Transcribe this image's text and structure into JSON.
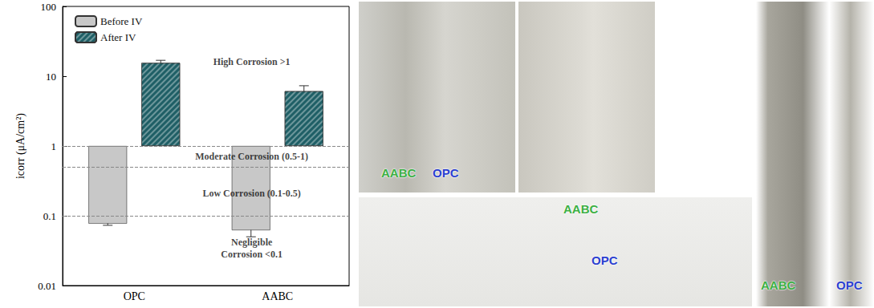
{
  "chart_data": {
    "type": "bar",
    "y_label": "icorr (μA/cm²)",
    "categories": [
      "OPC",
      "AABC"
    ],
    "series": [
      {
        "name": "Before IV",
        "color": "#c8c8c8",
        "values": [
          0.077,
          0.062
        ],
        "errors": [
          0.004,
          0.012
        ]
      },
      {
        "name": "After IV",
        "color": "#1f5f66",
        "values": [
          15.5,
          6.1
        ],
        "errors": [
          1.4,
          1.2
        ]
      }
    ],
    "log": "y",
    "ylim": [
      0.01,
      100
    ],
    "yticks": [
      0.01,
      0.1,
      1,
      10,
      100
    ],
    "grid": false,
    "legend": "upper left",
    "thresholds": [
      1,
      0.5,
      0.1
    ],
    "annotations": [
      {
        "text": "High Corrosion >1",
        "y": 16
      },
      {
        "text": "Moderate Corrosion (0.5-1)",
        "y": 0.7
      },
      {
        "text": "Low Corrosion (0.1-0.5)",
        "y": 0.21
      },
      {
        "text": "Negligible\nCorrosion <0.1",
        "y": 0.034
      }
    ]
  },
  "photos": [
    {
      "labels": [
        {
          "text": "AABC",
          "color": "#3cb043"
        },
        {
          "text": "OPC",
          "color": "#2b3fd0"
        }
      ]
    },
    {
      "labels": []
    },
    {
      "labels": [
        {
          "text": "AABC",
          "color": "#3cb043"
        },
        {
          "text": "OPC",
          "color": "#2b3fd0"
        }
      ]
    },
    {
      "labels": [
        {
          "text": "AABC",
          "color": "#3cb043"
        },
        {
          "text": "OPC",
          "color": "#2b3fd0"
        }
      ]
    }
  ]
}
